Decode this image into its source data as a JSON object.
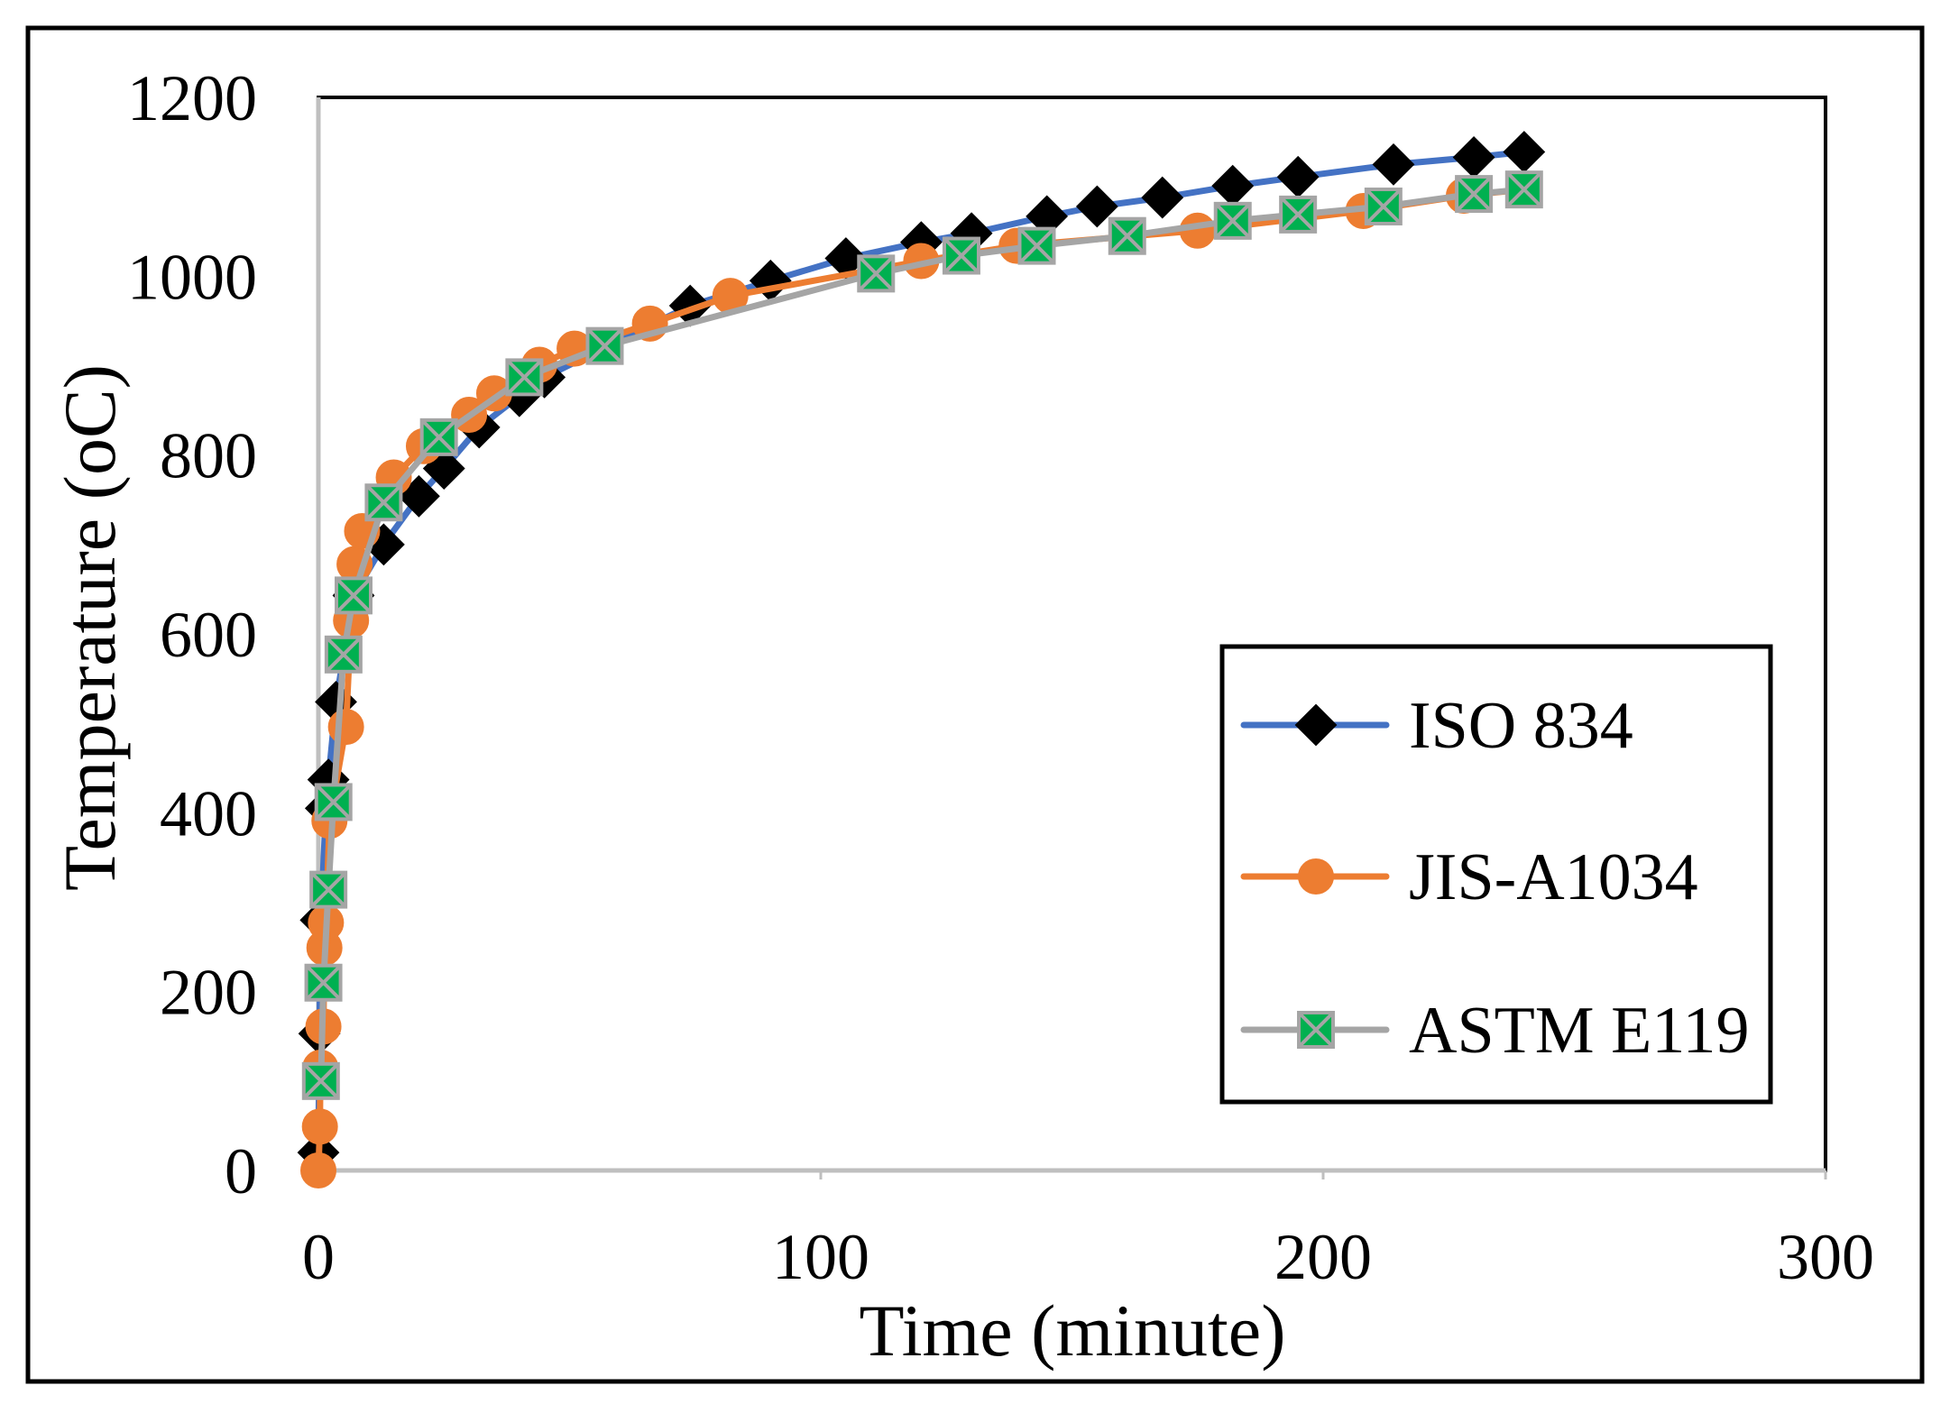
{
  "chart_data": {
    "type": "line",
    "xlabel": "Time (minute)",
    "ylabel": "Temperature (oC)",
    "xlim": [
      0,
      300
    ],
    "ylim": [
      0,
      1200
    ],
    "xticks": [
      0,
      100,
      200,
      300
    ],
    "yticks": [
      0,
      200,
      400,
      600,
      800,
      1000,
      1200
    ],
    "grid": false,
    "legend_position": "right",
    "axis_color": "#BFBFBF",
    "series": [
      {
        "name": "ISO 834",
        "color": "#4472C4",
        "marker": "diamond",
        "marker_color": "#000000",
        "x": [
          0,
          0.2,
          0.5,
          1.5,
          2,
          3.5,
          7,
          13,
          20,
          25,
          32,
          40,
          45,
          74,
          90,
          105,
          120,
          130,
          145,
          155,
          168,
          182,
          195,
          214,
          230,
          240
        ],
        "y": [
          20,
          153,
          280,
          405,
          437,
          524,
          643,
          700,
          754,
          785,
          831,
          866,
          887,
          967,
          995,
          1020,
          1038,
          1048,
          1067,
          1078,
          1088,
          1101,
          1111,
          1125,
          1133,
          1139
        ]
      },
      {
        "name": "JIS-A1034",
        "color": "#ED7D31",
        "marker": "circle",
        "marker_color": "#ED7D31",
        "x": [
          0,
          0.3,
          0.4,
          1,
          1.2,
          1.5,
          2.2,
          5.5,
          6.5,
          7.2,
          8.7,
          15,
          21,
          30,
          35,
          44,
          51,
          66,
          82,
          120,
          139,
          175,
          208,
          228,
          240
        ],
        "y": [
          0,
          49,
          115,
          161,
          249,
          277,
          391,
          496,
          615,
          678,
          715,
          775,
          810,
          845,
          869,
          901,
          919,
          947,
          978,
          1017,
          1034,
          1051,
          1073,
          1090,
          1097
        ]
      },
      {
        "name": "ASTM E119",
        "color": "#A5A5A5",
        "marker": "square-x",
        "marker_color": "#00B050",
        "x": [
          0.5,
          1,
          2,
          3,
          5,
          7,
          13,
          24,
          41,
          57,
          111,
          128,
          143,
          161,
          182,
          195,
          212,
          230,
          240
        ],
        "y": [
          100,
          210,
          314,
          412,
          577,
          643,
          747,
          820,
          887,
          922,
          1003,
          1023,
          1034,
          1045,
          1062,
          1069,
          1078,
          1092,
          1097
        ]
      }
    ]
  }
}
